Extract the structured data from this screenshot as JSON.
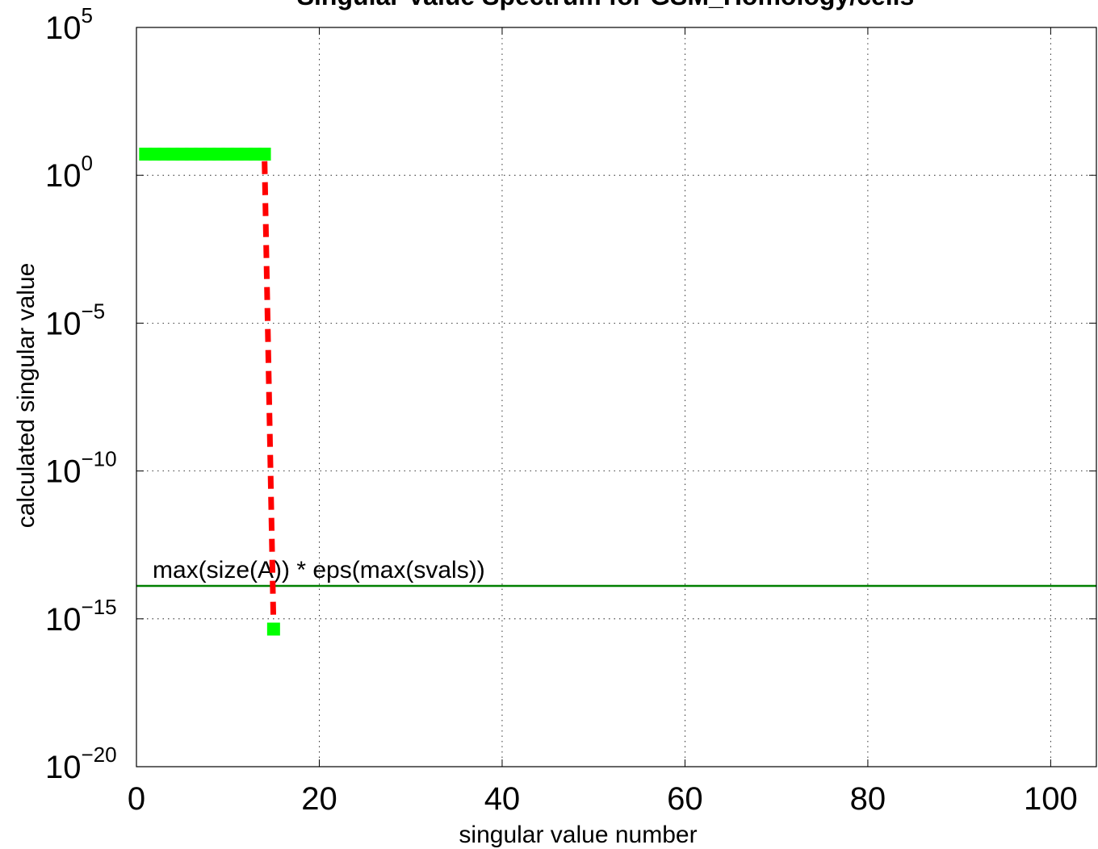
{
  "chart_data": {
    "type": "line",
    "title": "Singular Value Spectrum for GSM_Homology/cells",
    "xlabel": "singular value number",
    "ylabel": "calculated singular value",
    "xlim": [
      0,
      105
    ],
    "ylim": [
      1e-20,
      100000.0
    ],
    "y_scale": "log",
    "grid": true,
    "x_ticks": [
      "0",
      "20",
      "40",
      "60",
      "80",
      "100"
    ],
    "y_ticks": [
      {
        "base": "10",
        "exp": "5"
      },
      {
        "base": "10",
        "exp": "0"
      },
      {
        "base": "10",
        "exp": "−5"
      },
      {
        "base": "10",
        "exp": "−10"
      },
      {
        "base": "10",
        "exp": "−15"
      },
      {
        "base": "10",
        "exp": "−20"
      }
    ],
    "series": [
      {
        "style": "green squares",
        "color": "#00ff00",
        "x": [
          1,
          2,
          3,
          4,
          5,
          6,
          7,
          8,
          9,
          10,
          11,
          12,
          13,
          14,
          15
        ],
        "y": [
          5.2,
          5.2,
          5.2,
          5.2,
          5.2,
          5.2,
          5.2,
          5.2,
          5.2,
          5.2,
          5.2,
          5.2,
          5.2,
          5.2,
          4.5e-16
        ]
      },
      {
        "style": "red dashed",
        "color": "#ff0000",
        "x": [
          1,
          2,
          3,
          4,
          5,
          6,
          7,
          8,
          9,
          10,
          11,
          12,
          13,
          14,
          15
        ],
        "y": [
          5.2,
          5.2,
          5.2,
          5.2,
          5.2,
          5.2,
          5.2,
          5.2,
          5.2,
          5.2,
          5.2,
          5.2,
          5.2,
          5.2,
          4.5e-16
        ]
      }
    ],
    "threshold": {
      "label": "max(size(A)) * eps(max(svals))",
      "value": 1.3e-14,
      "color": "#008000"
    }
  }
}
